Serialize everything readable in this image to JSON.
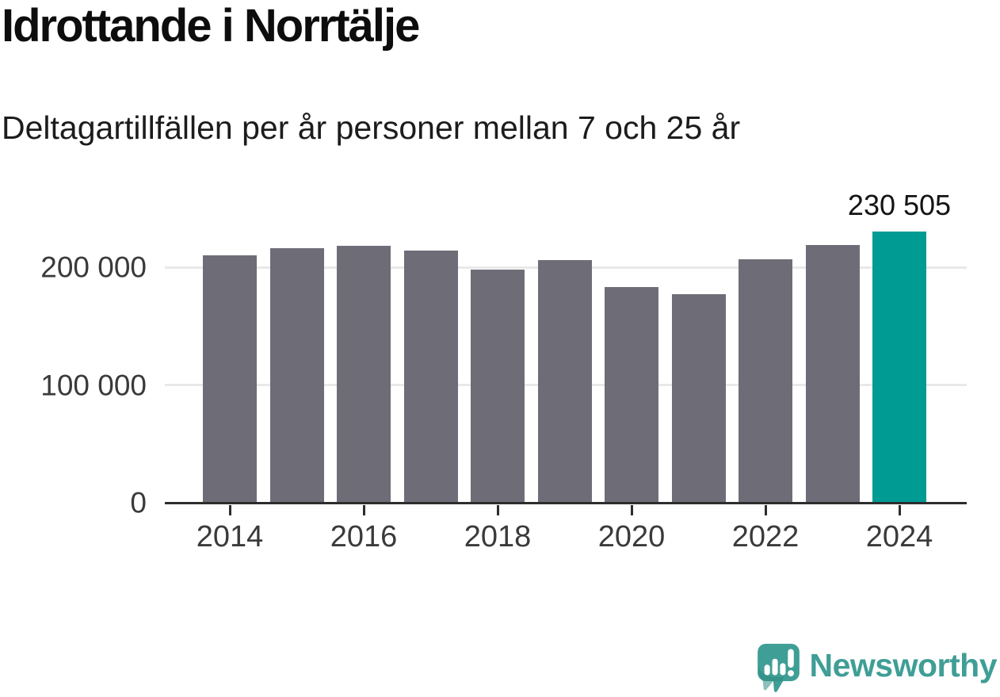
{
  "header": {
    "title": "Idrottande i Norrtälje",
    "subtitle": "Deltagartillfällen per år personer mellan 7 och 25 år"
  },
  "chart_data": {
    "type": "bar",
    "title": "Idrottande i Norrtälje",
    "subtitle": "Deltagartillfällen per år personer mellan 7 och 25 år",
    "categories": [
      "2014",
      "2015",
      "2016",
      "2017",
      "2018",
      "2019",
      "2020",
      "2021",
      "2022",
      "2023",
      "2024"
    ],
    "values": [
      210000,
      216000,
      218000,
      214000,
      198000,
      206000,
      183000,
      177000,
      207000,
      219000,
      230505
    ],
    "highlight_index": 10,
    "annotation": {
      "text": "230 505",
      "index": 10
    },
    "yticks": [
      {
        "value": 0,
        "label": "0"
      },
      {
        "value": 100000,
        "label": "100 000"
      },
      {
        "value": 200000,
        "label": "200 000"
      }
    ],
    "xtick_indices": [
      0,
      2,
      4,
      6,
      8,
      10
    ],
    "ylim": [
      0,
      252000
    ],
    "grid": "horizontal",
    "legend": "none",
    "bar_color": "#6e6d77",
    "highlight_color": "#009b92",
    "axis_color": "#2d2d2d",
    "gridline_color": "#e9e9e9"
  },
  "footer": {
    "brand": "Newsworthy",
    "brand_color": "#3f9e96",
    "logo_icon": "newsworthy-speech-bubble-chart-icon"
  }
}
